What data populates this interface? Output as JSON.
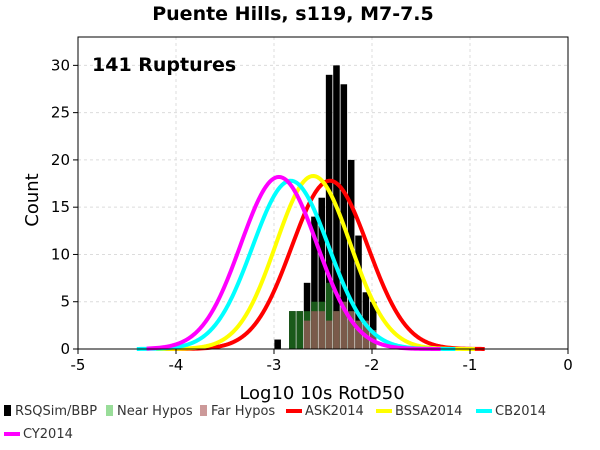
{
  "chart_data": {
    "type": "bar",
    "title": "Puente Hills, s119, M7-7.5",
    "annotation": "141 Ruptures",
    "xlabel": "Log10 10s RotD50",
    "ylabel": "Count",
    "xlim": [
      -5,
      0
    ],
    "ylim": [
      0,
      33
    ],
    "xticks": [
      -5,
      -4,
      -3,
      -2,
      -1,
      0
    ],
    "xtick_labels": [
      "-5",
      "-4",
      "-3",
      "-2",
      "-1",
      "0"
    ],
    "yticks": [
      0,
      5,
      10,
      15,
      20,
      25,
      30
    ],
    "ytick_labels": [
      "0",
      "5",
      "10",
      "15",
      "20",
      "25",
      "30"
    ],
    "grid": true,
    "legend_position": "bottom",
    "bin_width": 0.075,
    "histograms": [
      {
        "name": "RSQSim/BBP",
        "color": "#000000",
        "bins": [
          {
            "x": -3.0,
            "count": 1
          },
          {
            "x": -2.85,
            "count": 4
          },
          {
            "x": -2.775,
            "count": 4
          },
          {
            "x": -2.7,
            "count": 7
          },
          {
            "x": -2.625,
            "count": 14
          },
          {
            "x": -2.55,
            "count": 16
          },
          {
            "x": -2.475,
            "count": 29
          },
          {
            "x": -2.4,
            "count": 30
          },
          {
            "x": -2.325,
            "count": 28
          },
          {
            "x": -2.25,
            "count": 20
          },
          {
            "x": -2.175,
            "count": 12
          },
          {
            "x": -2.1,
            "count": 6
          },
          {
            "x": -2.025,
            "count": 5
          }
        ]
      },
      {
        "name": "Near Hypos",
        "color": "#1a5a1a",
        "bins": [
          {
            "x": -2.85,
            "count": 4
          },
          {
            "x": -2.775,
            "count": 4
          },
          {
            "x": -2.7,
            "count": 4
          },
          {
            "x": -2.625,
            "count": 5
          },
          {
            "x": -2.55,
            "count": 5
          },
          {
            "x": -2.475,
            "count": 7
          },
          {
            "x": -2.4,
            "count": 4
          },
          {
            "x": -2.325,
            "count": 4
          },
          {
            "x": -2.25,
            "count": 3
          }
        ]
      },
      {
        "name": "Far Hypos",
        "color": "#7a5a4a",
        "bins": [
          {
            "x": -2.7,
            "count": 3
          },
          {
            "x": -2.625,
            "count": 4
          },
          {
            "x": -2.55,
            "count": 4
          },
          {
            "x": -2.475,
            "count": 3
          },
          {
            "x": -2.4,
            "count": 4
          },
          {
            "x": -2.325,
            "count": 5
          },
          {
            "x": -2.25,
            "count": 4
          },
          {
            "x": -2.175,
            "count": 3
          },
          {
            "x": -2.1,
            "count": 3
          },
          {
            "x": -2.025,
            "count": 2
          }
        ]
      }
    ],
    "curves": [
      {
        "name": "ASK2014",
        "color": "#ff0000",
        "mean": -2.43,
        "sigma": 0.39,
        "peak": 17.8,
        "x_range": [
          -4.2,
          -0.85
        ]
      },
      {
        "name": "BSSA2014",
        "color": "#ffff00",
        "mean": -2.6,
        "sigma": 0.38,
        "peak": 18.3,
        "x_range": [
          -4.2,
          -0.95
        ]
      },
      {
        "name": "CB2014",
        "color": "#00ffff",
        "mean": -2.83,
        "sigma": 0.39,
        "peak": 17.8,
        "x_range": [
          -4.4,
          -1.15
        ]
      },
      {
        "name": "CY2014",
        "color": "#ff00ff",
        "mean": -2.95,
        "sigma": 0.39,
        "peak": 18.2,
        "x_range": [
          -4.3,
          -1.3
        ]
      }
    ],
    "legend": [
      {
        "label": "RSQSim/BBP",
        "color": "#000000",
        "kind": "box"
      },
      {
        "label": "Near Hypos",
        "color": "#99dd99",
        "kind": "box"
      },
      {
        "label": "Far Hypos",
        "color": "#cc9999",
        "kind": "box"
      },
      {
        "label": "ASK2014",
        "color": "#ff0000",
        "kind": "line"
      },
      {
        "label": "BSSA2014",
        "color": "#ffff00",
        "kind": "line"
      },
      {
        "label": "CB2014",
        "color": "#00ffff",
        "kind": "line"
      },
      {
        "label": "CY2014",
        "color": "#ff00ff",
        "kind": "line"
      }
    ]
  }
}
